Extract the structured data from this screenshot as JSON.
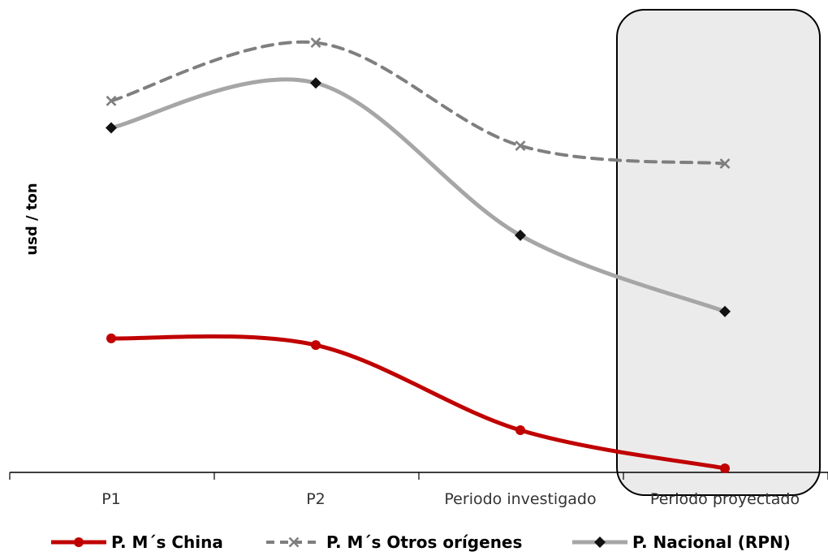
{
  "chart_data": {
    "type": "line",
    "title": "",
    "xlabel": "",
    "ylabel": "usd / ton",
    "categories": [
      "P1",
      "P2",
      "Periodo investigado",
      "Periodo proyectado"
    ],
    "ylim": [
      0,
      100
    ],
    "y_axis_shown": false,
    "grid": false,
    "legend_position": "bottom",
    "highlight": {
      "category": "Periodo proyectado",
      "fill": "#ebebeb",
      "border": "#000000"
    },
    "series": [
      {
        "name": "P. M´s China",
        "values": [
          31,
          29.5,
          10.5,
          2
        ],
        "color": "#c00000",
        "dash": "solid",
        "marker": "circle"
      },
      {
        "name": "P. M´s Otros orígenes",
        "values": [
          84,
          97,
          74,
          70
        ],
        "color": "#7f7f7f",
        "dash": "dashed",
        "marker": "x"
      },
      {
        "name": "P. Nacional (RPN)",
        "values": [
          78,
          88,
          54,
          37
        ],
        "color": "#a6a6a6",
        "dash": "solid",
        "marker": "diamond"
      }
    ]
  }
}
